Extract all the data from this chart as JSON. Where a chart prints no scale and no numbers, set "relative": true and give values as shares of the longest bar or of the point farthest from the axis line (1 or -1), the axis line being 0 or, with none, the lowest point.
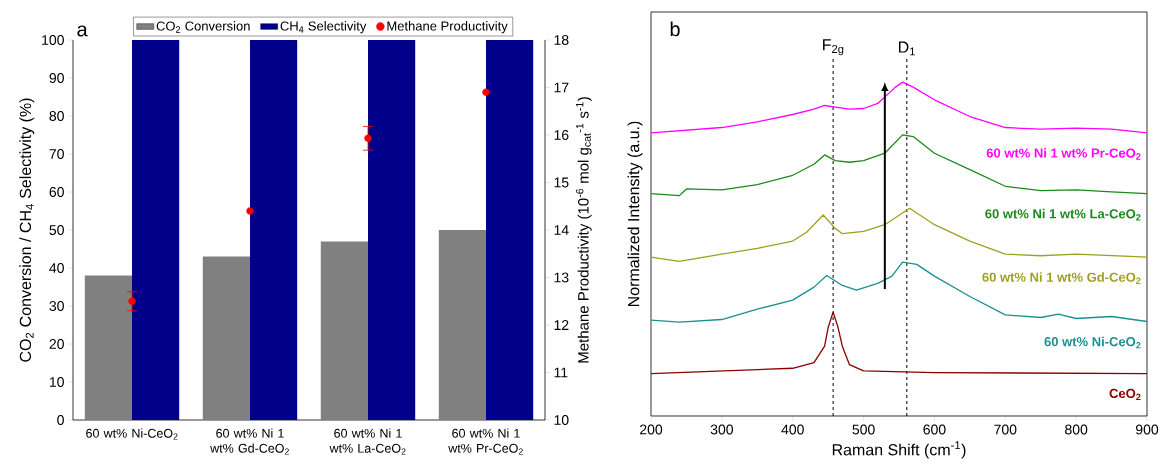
{
  "chart_data": [
    {
      "type": "bar",
      "title": "a",
      "ylabel": "CO$_{2}$ Conversion / CH$_{4}$ Selectivity (%)",
      "y2label": "Methane Productivity (10$^{-6}$ mol g$_{cat}$$^{-1}$ s$^{-1}$)",
      "categories": [
        "60 wt% Ni-CeO$_{2}$",
        "60 wt% Ni 1 wt% Gd-CeO$_{2}$",
        "60 wt% Ni 1 wt% La-CeO$_{2}$",
        "60 wt% Ni 1 wt% Pr-CeO$_{2}$"
      ],
      "series": [
        {
          "name": "CO$_{2}$ Conversion",
          "color": "#808080",
          "values": [
            38,
            43,
            47,
            50
          ]
        },
        {
          "name": "CH$_{4}$ Selectivity",
          "color": "#00008b",
          "values": [
            100,
            100,
            100,
            100
          ]
        },
        {
          "name": "Methane Productivity",
          "type": "scatter",
          "axis": "y2",
          "color": "#ff0000",
          "values": [
            12.5,
            14.4,
            15.93,
            16.9
          ],
          "errors": [
            0.2,
            null,
            0.25,
            null
          ]
        }
      ],
      "ylim": [
        0,
        100
      ],
      "yticks": [
        0,
        10,
        20,
        30,
        40,
        50,
        60,
        70,
        80,
        90,
        100
      ],
      "y2lim": [
        10,
        18
      ],
      "y2ticks": [
        10,
        11,
        12,
        13,
        14,
        15,
        16,
        17,
        18
      ],
      "legend": "top"
    },
    {
      "type": "line",
      "title": "b",
      "xlabel": "Raman Shift (cm$^{-1}$)",
      "ylabel": "Normalized Intensity (a.u.)",
      "relative": true,
      "xlim": [
        200,
        900
      ],
      "xticks": [
        200,
        300,
        400,
        500,
        600,
        700,
        800,
        900
      ],
      "tick_labels": "x",
      "line_style": "solid",
      "ref_lines": [
        {
          "axis": "x",
          "value": 457,
          "label": "F$_{2g}$",
          "color": "#000000",
          "line_style": "dashed"
        },
        {
          "axis": "x",
          "value": 561,
          "label": "D$_{1}$",
          "color": "#000000",
          "line_style": "dashed"
        }
      ],
      "series": [
        {
          "name": "60 wt% Ni 1 wt% Pr-CeO$_{2}$",
          "color": "#ff00ff",
          "x": [
            200,
            300,
            350,
            400,
            430,
            445,
            460,
            480,
            500,
            520,
            545,
            555,
            570,
            600,
            650,
            700,
            750,
            800,
            850,
            900
          ],
          "values": [
            0.848,
            0.864,
            0.881,
            0.903,
            0.919,
            0.93,
            0.925,
            0.919,
            0.921,
            0.936,
            0.985,
            1,
            0.985,
            0.947,
            0.897,
            0.864,
            0.859,
            0.862,
            0.859,
            0.848
          ]
        },
        {
          "name": "60 wt% Ni 1 wt% La-CeO$_{2}$",
          "color": "#1a8a1a",
          "x": [
            200,
            240,
            250,
            300,
            350,
            400,
            430,
            445,
            460,
            480,
            500,
            530,
            555,
            570,
            600,
            650,
            700,
            750,
            800,
            850,
            900
          ],
          "values": [
            0.666,
            0.66,
            0.68,
            0.677,
            0.693,
            0.721,
            0.754,
            0.782,
            0.765,
            0.76,
            0.765,
            0.787,
            0.842,
            0.837,
            0.787,
            0.738,
            0.688,
            0.675,
            0.677,
            0.671,
            0.666
          ]
        },
        {
          "name": "60 wt% Ni 1 wt% Gd-CeO$_{2}$",
          "color": "#a0a020",
          "x": [
            200,
            240,
            300,
            350,
            400,
            420,
            443,
            460,
            470,
            500,
            530,
            565,
            600,
            650,
            700,
            750,
            800,
            900
          ],
          "values": [
            0.476,
            0.463,
            0.485,
            0.502,
            0.524,
            0.551,
            0.602,
            0.562,
            0.546,
            0.553,
            0.573,
            0.622,
            0.573,
            0.524,
            0.485,
            0.48,
            0.485,
            0.476
          ]
        },
        {
          "name": "60 wt% Ni-CeO$_{2}$",
          "color": "#1a9090",
          "x": [
            200,
            240,
            300,
            350,
            400,
            430,
            448,
            470,
            490,
            520,
            540,
            555,
            575,
            600,
            650,
            700,
            750,
            775,
            800,
            850,
            900
          ],
          "values": [
            0.287,
            0.281,
            0.289,
            0.32,
            0.347,
            0.386,
            0.421,
            0.391,
            0.377,
            0.397,
            0.419,
            0.461,
            0.454,
            0.419,
            0.358,
            0.303,
            0.295,
            0.305,
            0.292,
            0.298,
            0.283
          ]
        },
        {
          "name": "CeO$_{2}$",
          "color": "#8b0000",
          "x": [
            200,
            400,
            430,
            445,
            450,
            457,
            464,
            470,
            480,
            500,
            600,
            900
          ],
          "values": [
            0.127,
            0.143,
            0.16,
            0.209,
            0.265,
            0.311,
            0.265,
            0.209,
            0.154,
            0.135,
            0.13,
            0.127
          ]
        }
      ]
    }
  ]
}
